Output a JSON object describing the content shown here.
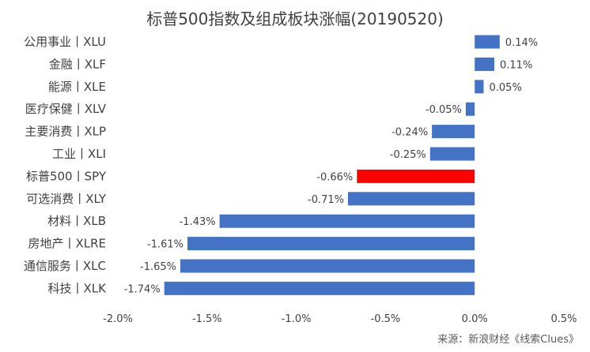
{
  "chart_data": {
    "type": "bar",
    "orientation": "horizontal",
    "title": "标普500指数及组成板块涨幅(20190520)",
    "categories": [
      "公用事业丨XLU",
      "金融丨XLF",
      "能源丨XLE",
      "医疗保健丨XLV",
      "主要消费丨XLP",
      "工业丨XLI",
      "标普500丨SPY",
      "可选消费丨XLY",
      "材料丨XLB",
      "房地产丨XLRE",
      "通信服务丨XLC",
      "科技丨XLK"
    ],
    "values": [
      0.14,
      0.11,
      0.05,
      -0.05,
      -0.24,
      -0.25,
      -0.66,
      -0.71,
      -1.43,
      -1.61,
      -1.65,
      -1.74
    ],
    "data_labels": [
      "0.14%",
      "0.11%",
      "0.05%",
      "-0.05%",
      "-0.24%",
      "-0.25%",
      "-0.66%",
      "-0.71%",
      "-1.43%",
      "-1.61%",
      "-1.65%",
      "-1.74%"
    ],
    "highlight_index": 6,
    "xlim": [
      -2.0,
      0.5
    ],
    "xticks": [
      -2.0,
      -1.5,
      -1.0,
      -0.5,
      0.0,
      0.5
    ],
    "xtick_labels": [
      "-2.0%",
      "-1.5%",
      "-1.0%",
      "-0.5%",
      "0.0%",
      "0.5%"
    ],
    "xlabel": "",
    "ylabel": "",
    "grid": false,
    "legend": "none",
    "colors": {
      "bar": "#4472C4",
      "highlight": "#FF0000",
      "text": "#404040",
      "axis": "#D9D9D9"
    }
  },
  "source": "来源：新浪财经《线索Clues》"
}
